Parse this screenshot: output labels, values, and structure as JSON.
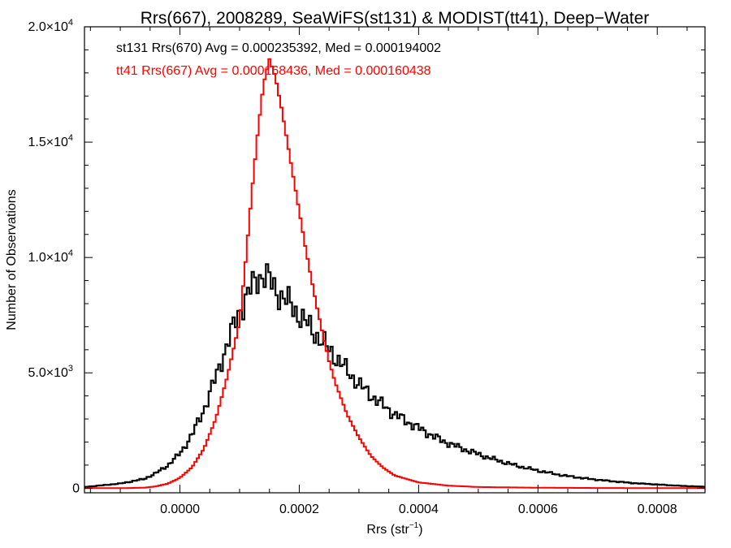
{
  "chart_data": {
    "type": "line",
    "title": "Rrs(667), 2008289, SeaWiFS(st131) & MODIST(tt41), Deep−Water",
    "xlabel_main": "Rrs (str",
    "xlabel_sup": "−1",
    "xlabel_close": ")",
    "ylabel": "Number of Observations",
    "xlim": [
      -0.00016,
      0.00088
    ],
    "ylim": [
      -200,
      20000
    ],
    "xticks": [
      {
        "value": 0.0,
        "label": "0.0000"
      },
      {
        "value": 0.0002,
        "label": "0.0002"
      },
      {
        "value": 0.0004,
        "label": "0.0004"
      },
      {
        "value": 0.0006,
        "label": "0.0006"
      },
      {
        "value": 0.0008,
        "label": "0.0008"
      }
    ],
    "yticks": [
      {
        "value": 0,
        "label": "0",
        "exp": ""
      },
      {
        "value": 5000,
        "label": "5.0×10",
        "exp": "3"
      },
      {
        "value": 10000,
        "label": "1.0×10",
        "exp": "4"
      },
      {
        "value": 15000,
        "label": "1.5×10",
        "exp": "4"
      },
      {
        "value": 20000,
        "label": "2.0×10",
        "exp": "4"
      }
    ],
    "annotations": [
      "st131 Rrs(670) Avg = 0.000235392, Med = 0.000194002",
      "tt41 Rrs(667) Avg = 0.000168436, Med = 0.000160438"
    ],
    "series": [
      {
        "color": "#000000",
        "x": [
          -0.00016,
          -0.0001,
          -6e-05,
          -4e-05,
          -2e-05,
          0.0,
          2e-05,
          4e-05,
          6e-05,
          8e-05,
          0.0001,
          0.00012,
          0.00013,
          0.00014,
          0.00015,
          0.00016,
          0.00018,
          0.0002,
          0.00022,
          0.00024,
          0.00026,
          0.00028,
          0.0003,
          0.00033,
          0.00036,
          0.0004,
          0.00044,
          0.00048,
          0.00052,
          0.00056,
          0.0006,
          0.00064,
          0.00068,
          0.00072,
          0.00076,
          0.0008,
          0.00084,
          0.00088
        ],
        "y": [
          50,
          200,
          400,
          650,
          1000,
          1500,
          2300,
          3400,
          4800,
          6300,
          7700,
          8700,
          9100,
          9300,
          9000,
          8600,
          8100,
          7500,
          6900,
          6300,
          5700,
          5100,
          4500,
          3800,
          3200,
          2600,
          2050,
          1650,
          1300,
          1000,
          760,
          560,
          420,
          310,
          220,
          160,
          100,
          60
        ]
      },
      {
        "color": "#ff0000",
        "x": [
          -0.00016,
          -0.0001,
          -6e-05,
          -4e-05,
          -2e-05,
          0.0,
          2e-05,
          4e-05,
          6e-05,
          8e-05,
          0.0001,
          0.00011,
          0.00012,
          0.00013,
          0.00014,
          0.00015,
          0.00016,
          0.00017,
          0.00018,
          0.00019,
          0.0002,
          0.00021,
          0.00022,
          0.00023,
          0.00024,
          0.00025,
          0.00026,
          0.00028,
          0.0003,
          0.00032,
          0.00034,
          0.00036,
          0.0004,
          0.00045,
          0.0005,
          0.0006,
          0.0007,
          0.0008,
          0.00088
        ],
        "y": [
          0,
          0,
          20,
          80,
          200,
          450,
          900,
          1700,
          3000,
          4900,
          7200,
          9800,
          12700,
          15300,
          17500,
          18600,
          17800,
          16500,
          15000,
          13500,
          12000,
          10500,
          9100,
          7800,
          6600,
          5500,
          4600,
          3200,
          2200,
          1400,
          900,
          550,
          250,
          110,
          50,
          20,
          8,
          3,
          0
        ]
      }
    ]
  }
}
